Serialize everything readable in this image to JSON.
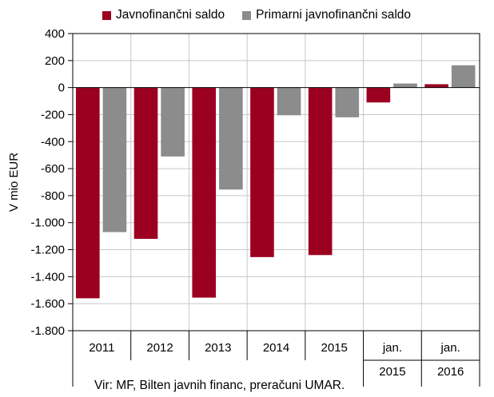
{
  "chart_data": {
    "type": "bar",
    "ylabel": "V mio EUR",
    "ylim": [
      -1800,
      400
    ],
    "yticks": [
      400,
      200,
      0,
      -200,
      -400,
      -600,
      -800,
      -1000,
      -1200,
      -1400,
      -1600,
      -1800
    ],
    "ytick_labels": [
      "400",
      "200",
      "0",
      "-200",
      "-400",
      "-600",
      "-800",
      "-1.000",
      "-1.200",
      "-1.400",
      "-1.600",
      "-1.800"
    ],
    "grid": true,
    "legend_position": "top",
    "categories": [
      {
        "line1": "2011",
        "line2": ""
      },
      {
        "line1": "2012",
        "line2": ""
      },
      {
        "line1": "2013",
        "line2": ""
      },
      {
        "line1": "2014",
        "line2": ""
      },
      {
        "line1": "2015",
        "line2": ""
      },
      {
        "line1": "jan.",
        "line2": "2015"
      },
      {
        "line1": "jan.",
        "line2": "2016"
      }
    ],
    "series": [
      {
        "name": "Javnofinančni saldo",
        "color": "#9b0020",
        "values": [
          -1560,
          -1120,
          -1555,
          -1255,
          -1240,
          -110,
          25
        ]
      },
      {
        "name": "Primarni javnofinančni saldo",
        "color": "#8c8c8c",
        "values": [
          -1070,
          -510,
          -755,
          -205,
          -220,
          30,
          165
        ]
      }
    ],
    "source": "Vir: MF, Bilten javnih financ, preračuni UMAR."
  }
}
